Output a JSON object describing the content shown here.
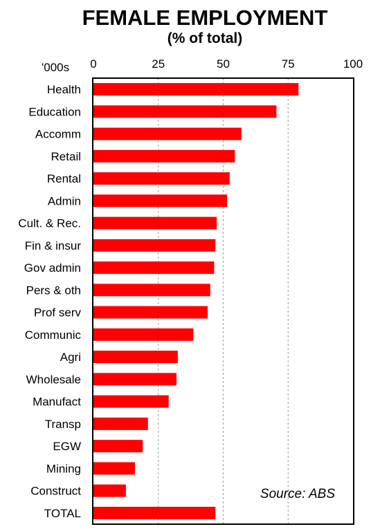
{
  "chart_data": {
    "type": "bar",
    "orientation": "horizontal",
    "title": "FEMALE EMPLOYMENT",
    "subtitle": "(% of total)",
    "unit_label": "'000s",
    "source": "Source: ABS",
    "xlim": [
      0,
      100
    ],
    "xticks": [
      0,
      25,
      50,
      75,
      100
    ],
    "grid": "vertical dashed",
    "bar_color": "#ff0000",
    "categories": [
      "Health",
      "Education",
      "Accomm",
      "Retail",
      "Rental",
      "Admin",
      "Cult. & Rec.",
      "Fin & insur",
      "Gov admin",
      "Pers & oth",
      "Prof serv",
      "Communic",
      "Agri",
      "Wholesale",
      "Manufact",
      "Transp",
      "EGW",
      "Mining",
      "Construct",
      "TOTAL"
    ],
    "values": [
      79,
      70.5,
      57,
      54.5,
      52.5,
      51.5,
      47.5,
      47,
      46.5,
      45,
      44,
      38.5,
      32.5,
      32,
      29,
      21,
      19,
      16,
      12.5,
      47
    ]
  }
}
